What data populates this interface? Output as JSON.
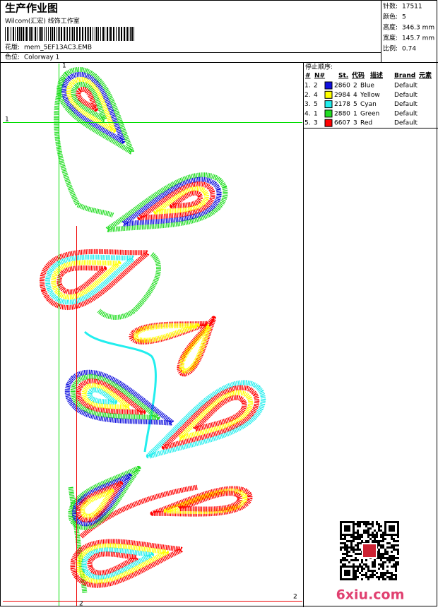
{
  "header": {
    "title": "生产作业图",
    "subtitle": "Wilcom(汇宏) 线饰工作室",
    "design_label": "花版:",
    "design_file": "mem_5EF13AC3.EMB",
    "colorway_label": "色位:",
    "colorway": "Colorway 1"
  },
  "stats": [
    {
      "label": "针数:",
      "value": "17511"
    },
    {
      "label": "颜色:",
      "value": "5"
    },
    {
      "label": "高度:",
      "value": "346.3 mm"
    },
    {
      "label": "宽度:",
      "value": "145.7 mm"
    },
    {
      "label": "比例:",
      "value": "0.74"
    }
  ],
  "stop_sequence": {
    "title": "停止顺序:",
    "columns": [
      "#",
      "N#",
      "St.",
      "代码",
      "描述",
      "Brand",
      "元素"
    ],
    "rows": [
      {
        "index": "1.",
        "needle": "2",
        "color": "#1010e0",
        "stitches": "2860",
        "code": "2",
        "desc": "Blue",
        "brand": "Default"
      },
      {
        "index": "2.",
        "needle": "4",
        "color": "#ffff00",
        "stitches": "2984",
        "code": "4",
        "desc": "Yellow",
        "brand": "Default"
      },
      {
        "index": "3.",
        "needle": "5",
        "color": "#22eeee",
        "stitches": "2178",
        "code": "5",
        "desc": "Cyan",
        "brand": "Default"
      },
      {
        "index": "4.",
        "needle": "1",
        "color": "#22dd22",
        "stitches": "2880",
        "code": "1",
        "desc": "Green",
        "brand": "Default"
      },
      {
        "index": "5.",
        "needle": "3",
        "color": "#ff0000",
        "stitches": "6607",
        "code": "3",
        "desc": "Red",
        "brand": "Default"
      }
    ]
  },
  "guides": {
    "green": "1",
    "red": "2"
  },
  "watermark": "6xiu.com"
}
